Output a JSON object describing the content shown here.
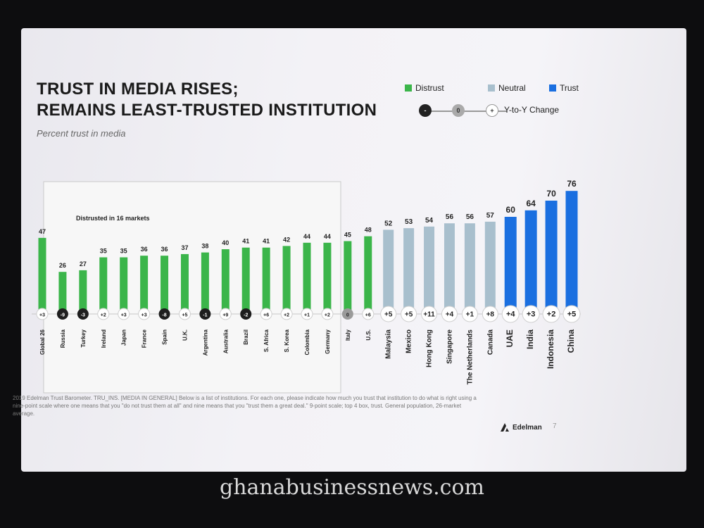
{
  "slide": {
    "title_line1": "TRUST IN MEDIA RISES;",
    "title_line2": "REMAINS LEAST-TRUSTED INSTITUTION",
    "subtitle": "Percent trust in media",
    "box_label": "Distrusted in 16 markets",
    "footnote": "2019 Edelman Trust Barometer. TRU_INS. [MEDIA IN GENERAL] Below is a list of institutions. For each one, please indicate how much you trust that institution to do what is right using a nine-point scale where one means that you \"do not trust them at all\" and nine means that you \"trust them a great deal.\" 9-point scale; top 4 box, trust. General population, 26-market average.",
    "brand": "Edelman",
    "page_number": "7",
    "watermark": "ghanabusinessnews.com"
  },
  "legend": {
    "distrust": "Distrust",
    "neutral": "Neutral",
    "trust": "Trust",
    "yoy_label": "Y-to-Y Change",
    "yoy_neg": "-",
    "yoy_zero": "0",
    "yoy_pos": "+"
  },
  "colors": {
    "distrust": "#3bb54a",
    "neutral": "#a8bfcd",
    "trust": "#1a6fe0",
    "neg_circle": "#1e1e1e",
    "zero_circle": "#9a9a9a"
  },
  "chart_data": {
    "type": "bar",
    "ylim": [
      0,
      80
    ],
    "categories": [
      "Global 26",
      "Russia",
      "Turkey",
      "Ireland",
      "Japan",
      "France",
      "Spain",
      "U.K.",
      "Argentina",
      "Australia",
      "Brazil",
      "S. Africa",
      "S. Korea",
      "Colombia",
      "Germany",
      "Italy",
      "U.S.",
      "Malaysia",
      "Mexico",
      "Hong Kong",
      "Singapore",
      "The Netherlands",
      "Canada",
      "UAE",
      "India",
      "Indonesia",
      "China"
    ],
    "values": [
      47,
      26,
      27,
      35,
      35,
      36,
      36,
      37,
      38,
      40,
      41,
      41,
      42,
      44,
      44,
      45,
      48,
      52,
      53,
      54,
      56,
      56,
      57,
      60,
      64,
      70,
      76
    ],
    "change": [
      "+3",
      "-9",
      "-3",
      "+2",
      "+3",
      "+3",
      "-8",
      "+5",
      "-1",
      "+9",
      "-2",
      "+6",
      "+2",
      "+1",
      "+2",
      "0",
      "+6",
      "+5",
      "+5",
      "+11",
      "+4",
      "+1",
      "+8",
      "+4",
      "+3",
      "+2",
      "+5"
    ],
    "group": [
      "distrust",
      "distrust",
      "distrust",
      "distrust",
      "distrust",
      "distrust",
      "distrust",
      "distrust",
      "distrust",
      "distrust",
      "distrust",
      "distrust",
      "distrust",
      "distrust",
      "distrust",
      "distrust",
      "distrust",
      "neutral",
      "neutral",
      "neutral",
      "neutral",
      "neutral",
      "neutral",
      "trust",
      "trust",
      "trust",
      "trust"
    ]
  }
}
